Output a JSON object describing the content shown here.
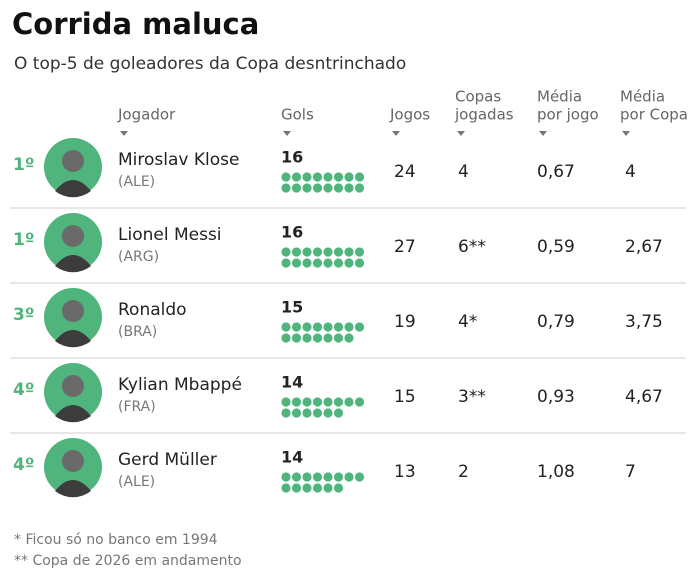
{
  "header": {
    "title": "Corrida maluca",
    "subtitle": "O top-5 de goleadores da Copa desntrinchado"
  },
  "table": {
    "columns": [
      [
        "Jogador"
      ],
      [
        "Gols"
      ],
      [
        "Jogos"
      ],
      [
        "Copas",
        "jogadas"
      ],
      [
        "Média",
        "por jogo"
      ],
      [
        "Média",
        "por Copa"
      ]
    ],
    "rows": [
      {
        "rank": "1º",
        "name": "Miroslav Klose",
        "country": "(ALE)",
        "goals": 16,
        "games": 24,
        "cups": "4",
        "per_game": "0,67",
        "per_cup": "4"
      },
      {
        "rank": "1º",
        "name": "Lionel Messi",
        "country": "(ARG)",
        "goals": 16,
        "games": 27,
        "cups": "6**",
        "per_game": "0,59",
        "per_cup": "2,67"
      },
      {
        "rank": "3º",
        "name": "Ronaldo",
        "country": "(BRA)",
        "goals": 15,
        "games": 19,
        "cups": "4*",
        "per_game": "0,79",
        "per_cup": "3,75"
      },
      {
        "rank": "4º",
        "name": "Kylian Mbappé",
        "country": "(FRA)",
        "goals": 14,
        "games": 15,
        "cups": "3**",
        "per_game": "0,93",
        "per_cup": "4,67"
      },
      {
        "rank": "4º",
        "name": "Gerd Müller",
        "country": "(ALE)",
        "goals": 14,
        "games": 13,
        "cups": "2",
        "per_game": "1,08",
        "per_cup": "7"
      }
    ]
  },
  "footnotes": [
    "* Ficou só no banco em 1994",
    "** Copa de 2026 em andamento"
  ]
}
